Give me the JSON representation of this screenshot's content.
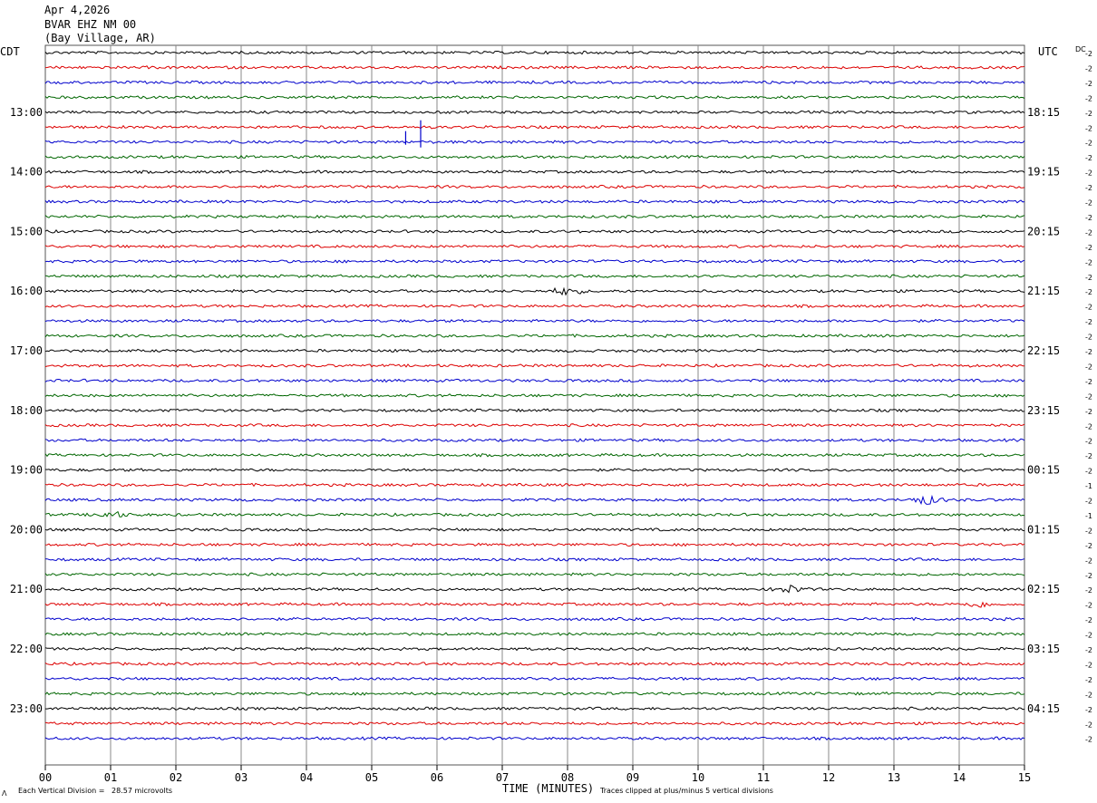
{
  "header": {
    "date": "Apr 4,2026",
    "station": "BVAR EHZ NM 00",
    "location": "(Bay Village, AR)"
  },
  "left_timezone": "CDT",
  "right_timezone": "UTC",
  "dc_label": "DC",
  "footer": {
    "scale_note": "Each Vertical Division =   28.57 microvolts",
    "clip_note": "Traces clipped at plus/minus 5 vertical divisions",
    "mark": "Λ"
  },
  "chart_data": {
    "type": "line",
    "title": "",
    "xlabel": "TIME (MINUTES)",
    "ylabel": "",
    "xlim": [
      0,
      15
    ],
    "x_ticks": [
      "00",
      "01",
      "02",
      "03",
      "04",
      "05",
      "06",
      "07",
      "08",
      "09",
      "10",
      "11",
      "12",
      "13",
      "14",
      "15"
    ],
    "trace_colors": [
      "#000000",
      "#dd0000",
      "#0000cc",
      "#006600"
    ],
    "row_count": 47,
    "row_minutes": 15,
    "left_labels": [
      "13:00",
      "14:00",
      "15:00",
      "16:00",
      "17:00",
      "18:00",
      "19:00",
      "20:00",
      "21:00",
      "22:00",
      "23:00"
    ],
    "right_labels": [
      "18:15",
      "19:15",
      "20:15",
      "21:15",
      "22:15",
      "23:15",
      "00:15",
      "01:15",
      "02:15",
      "03:15",
      "04:15"
    ],
    "label_rows": [
      4,
      8,
      12,
      16,
      20,
      24,
      28,
      32,
      36,
      40,
      44
    ],
    "dc_offsets": [
      "-2",
      "-2",
      "-2",
      "-2",
      "-2",
      "-2",
      "-2",
      "-2",
      "-2",
      "-2",
      "-2",
      "-2",
      "-2",
      "-2",
      "-2",
      "-2",
      "-2",
      "-2",
      "-2",
      "-2",
      "-2",
      "-2",
      "-2",
      "-2",
      "-2",
      "-2",
      "-2",
      "-2",
      "-2",
      "-1",
      "-2",
      "-1",
      "-2",
      "-2",
      "-2",
      "-2",
      "-2",
      "-2",
      "-2",
      "-2",
      "-2",
      "-2",
      "-2",
      "-2",
      "-2",
      "-2",
      "-2"
    ],
    "events": [
      {
        "row": 6,
        "minute": 5.75,
        "amplitude": 3.0,
        "kind": "spike"
      },
      {
        "row": 6,
        "minute": 5.52,
        "amplitude": 1.5,
        "kind": "spike"
      },
      {
        "row": 16,
        "minute": 7.98,
        "amplitude": 1.2,
        "kind": "burst"
      },
      {
        "row": 36,
        "minute": 11.4,
        "amplitude": 1.2,
        "kind": "burst"
      },
      {
        "row": 37,
        "minute": 14.3,
        "amplitude": 0.9,
        "kind": "burst"
      },
      {
        "row": 30,
        "minute": 13.5,
        "amplitude": 1.4,
        "kind": "burst"
      },
      {
        "row": 31,
        "minute": 1.0,
        "amplitude": 1.0,
        "kind": "burst"
      }
    ]
  }
}
